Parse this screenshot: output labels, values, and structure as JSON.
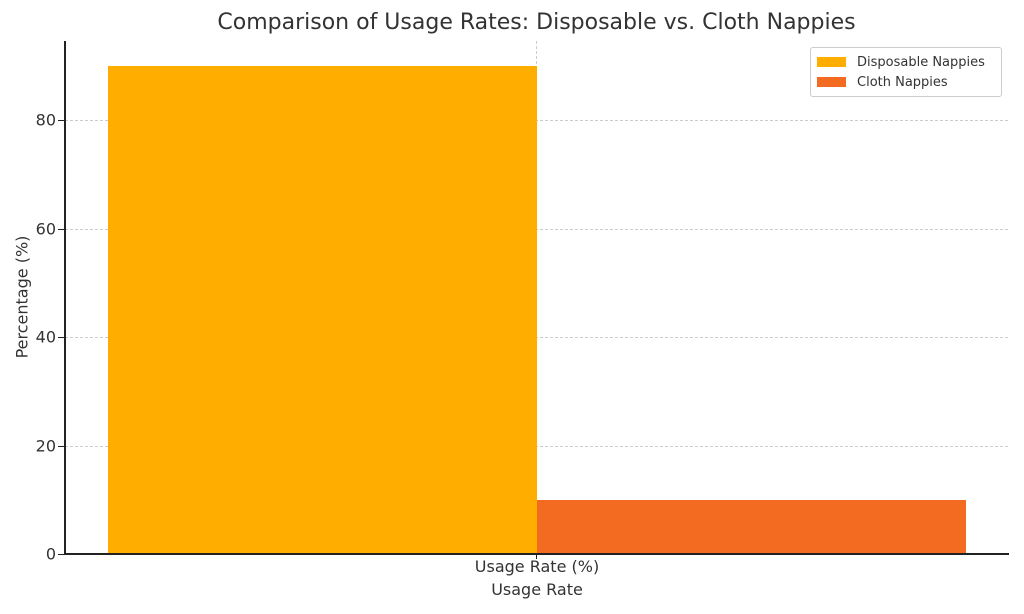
{
  "chart_data": {
    "type": "bar",
    "title": "Comparison of Usage Rates: Disposable vs. Cloth Nappies",
    "xlabel": "Usage Rate",
    "ylabel": "Percentage (%)",
    "categories": [
      "Usage Rate (%)"
    ],
    "series": [
      {
        "name": "Disposable Nappies",
        "values": [
          90
        ],
        "color": "#FFAE00"
      },
      {
        "name": "Cloth Nappies",
        "values": [
          10
        ],
        "color": "#F26B21"
      }
    ],
    "ylim": [
      0,
      94.5
    ],
    "yticks": [
      0,
      20,
      40,
      60,
      80
    ],
    "grid": true,
    "legend_position": "upper right"
  },
  "labels": {
    "title": "Comparison of Usage Rates: Disposable vs. Cloth Nappies",
    "xlabel": "Usage Rate",
    "ylabel": "Percentage (%)",
    "xtick": "Usage Rate (%)",
    "yticks": [
      "0",
      "20",
      "40",
      "60",
      "80"
    ],
    "legend": [
      "Disposable Nappies",
      "Cloth Nappies"
    ]
  }
}
